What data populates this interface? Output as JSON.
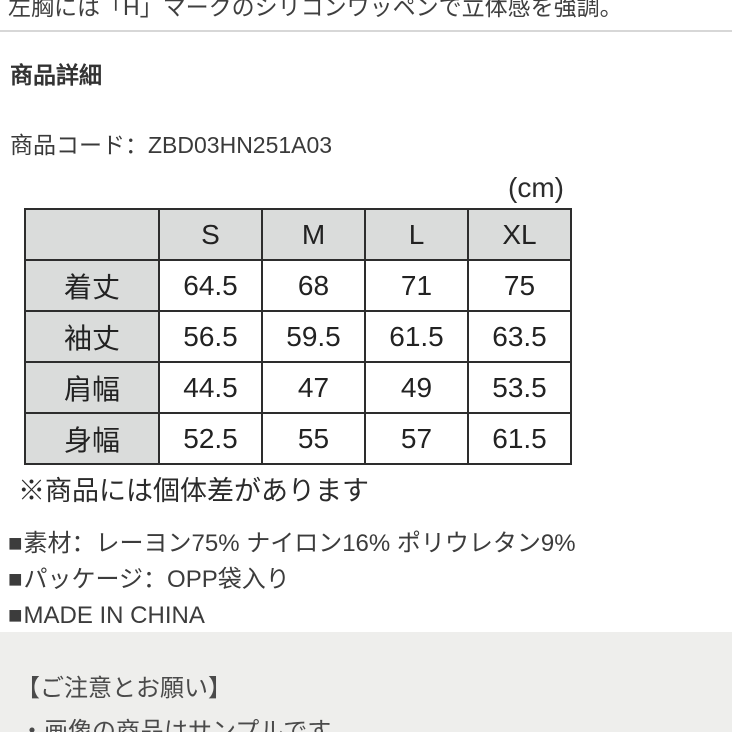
{
  "page": {
    "intro_text_cutoff": "左胸には「H」マークのシリコンワッペンで立体感を強調。",
    "section_title": "商品詳細",
    "product_code_label": "商品コード：",
    "product_code_value": "ZBD03HN251A03"
  },
  "size_table": {
    "unit_label": "(cm)",
    "columns": [
      "S",
      "M",
      "L",
      "XL"
    ],
    "rows": [
      {
        "label": "着丈",
        "values": [
          "64.5",
          "68",
          "71",
          "75"
        ]
      },
      {
        "label": "袖丈",
        "values": [
          "56.5",
          "59.5",
          "61.5",
          "63.5"
        ]
      },
      {
        "label": "肩幅",
        "values": [
          "44.5",
          "47",
          "49",
          "53.5"
        ]
      },
      {
        "label": "身幅",
        "values": [
          "52.5",
          "55",
          "57",
          "61.5"
        ]
      }
    ],
    "note": "※商品には個体差があります"
  },
  "details": {
    "bullet_icon": "■",
    "items": [
      "素材：レーヨン75% ナイロン16% ポリウレタン9%",
      "パッケージ：OPP袋入り",
      "MADE IN CHINA"
    ]
  },
  "notice": {
    "title": "【ご注意とお願い】",
    "items": [
      "・画像の商品はサンプルです。"
    ]
  },
  "colors": {
    "table_header_bg": "#dadcdb",
    "table_border": "#2d2d2d",
    "notice_bg": "#eeeeec",
    "divider": "#d7d7d7",
    "text": "#3a3a3a"
  }
}
